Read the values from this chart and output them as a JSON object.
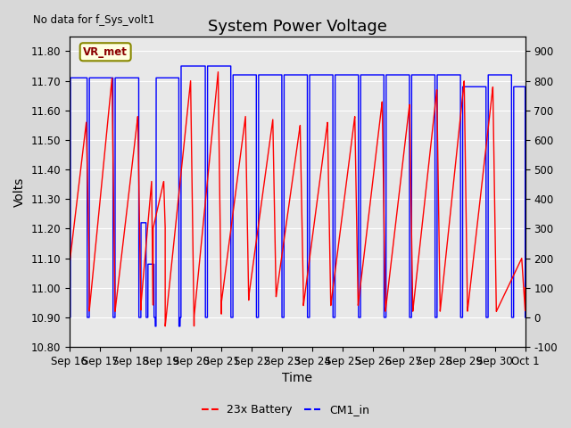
{
  "title": "System Power Voltage",
  "xlabel": "Time",
  "ylabel": "Volts",
  "no_data_label": "No data for f_Sys_volt1",
  "vr_met_label": "VR_met",
  "legend_entries": [
    "23x Battery",
    "CM1_in"
  ],
  "x_tick_labels": [
    "Sep 16",
    "Sep 17",
    "Sep 18",
    "Sep 19",
    "Sep 20",
    "Sep 21",
    "Sep 22",
    "Sep 23",
    "Sep 24",
    "Sep 25",
    "Sep 26",
    "Sep 27",
    "Sep 28",
    "Sep 29",
    "Sep 30",
    "Oct 1"
  ],
  "ylim_left": [
    10.8,
    11.85
  ],
  "ylim_right": [
    -100,
    950
  ],
  "yticks_left": [
    10.8,
    10.9,
    11.0,
    11.1,
    11.2,
    11.3,
    11.4,
    11.5,
    11.6,
    11.7,
    11.8
  ],
  "yticks_right": [
    -100,
    0,
    100,
    200,
    300,
    400,
    500,
    600,
    700,
    800,
    900
  ],
  "background_color": "#d8d8d8",
  "plot_bg_color": "#e8e8e8",
  "title_fontsize": 13,
  "axis_label_fontsize": 10,
  "tick_fontsize": 8.5
}
